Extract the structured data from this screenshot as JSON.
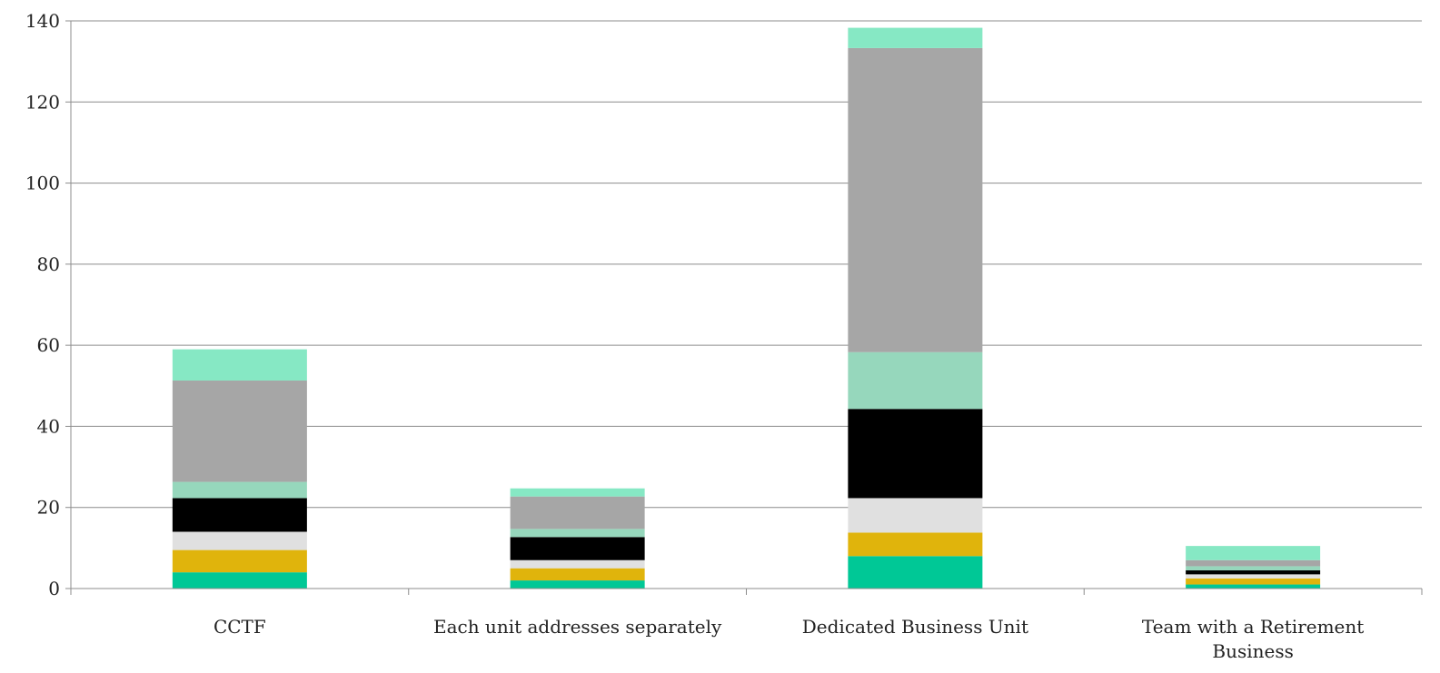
{
  "chart_data": {
    "type": "bar",
    "stacked": true,
    "title": "",
    "xlabel": "",
    "ylabel": "",
    "ylim": [
      0,
      140
    ],
    "yticks": [
      0,
      20,
      40,
      60,
      80,
      100,
      120,
      140
    ],
    "grid": true,
    "legend": "none",
    "categories": [
      [
        "CCTF"
      ],
      [
        "Each unit addresses separately"
      ],
      [
        "Dedicated Business Unit"
      ],
      [
        "Team with a Retirement",
        "Business"
      ]
    ],
    "series": [
      {
        "color": "#00c896",
        "values": [
          4,
          2,
          8,
          1
        ]
      },
      {
        "color": "#e0b40c",
        "values": [
          5.5,
          3,
          5.8,
          1.5
        ]
      },
      {
        "color": "#e0e0e0",
        "values": [
          4.5,
          2,
          8.5,
          1
        ]
      },
      {
        "color": "#000000",
        "values": [
          8.3,
          5.7,
          22,
          1
        ]
      },
      {
        "color": "#96d7bc",
        "values": [
          4,
          2,
          14,
          1
        ]
      },
      {
        "color": "#a6a6a6",
        "values": [
          25,
          8,
          75,
          1.5
        ]
      },
      {
        "color": "#86e8c4",
        "values": [
          7.7,
          2,
          5,
          3.5
        ]
      }
    ]
  }
}
